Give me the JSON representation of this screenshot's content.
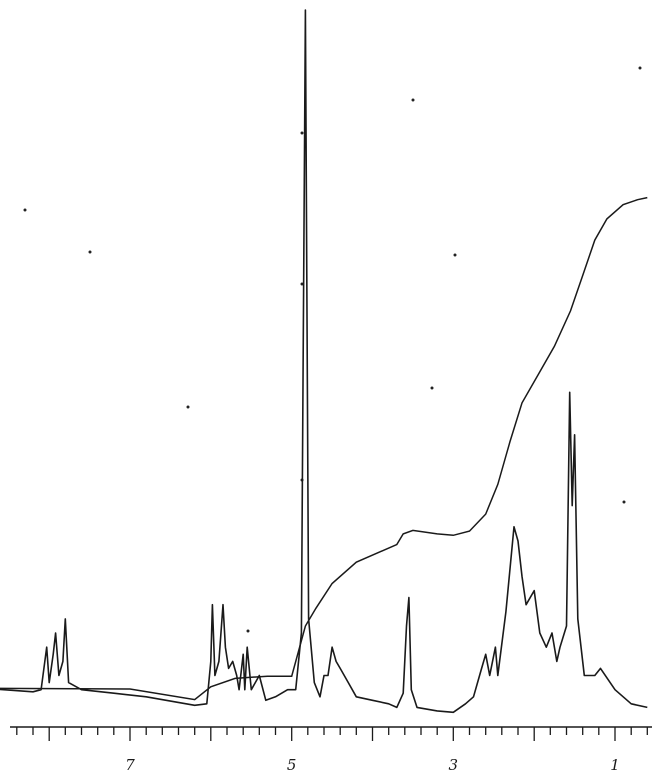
{
  "chart_data": {
    "type": "line",
    "title": "",
    "xlabel": "",
    "ylabel": "",
    "x_reversed": true,
    "xlim": [
      0.6,
      8.8
    ],
    "ylim": [
      0,
      100
    ],
    "grid": false,
    "legend": "none",
    "x_tick_labels": [
      {
        "value": 7,
        "label": "7"
      },
      {
        "value": 5,
        "label": "5"
      },
      {
        "value": 3,
        "label": "3"
      },
      {
        "value": 1,
        "label": "1"
      }
    ],
    "series": [
      {
        "type": "spectrum",
        "points": [
          [
            8.8,
            4.2
          ],
          [
            8.2,
            3.7
          ],
          [
            8.1,
            4
          ],
          [
            8.03,
            10
          ],
          [
            8.0,
            5
          ],
          [
            7.95,
            9
          ],
          [
            7.92,
            12
          ],
          [
            7.88,
            6
          ],
          [
            7.83,
            8
          ],
          [
            7.8,
            14
          ],
          [
            7.76,
            5
          ],
          [
            7.6,
            4
          ],
          [
            7.2,
            3.5
          ],
          [
            6.8,
            3.0
          ],
          [
            6.2,
            1.8
          ],
          [
            6.05,
            2.0
          ],
          [
            6.0,
            8
          ],
          [
            5.98,
            16
          ],
          [
            5.95,
            6
          ],
          [
            5.9,
            8
          ],
          [
            5.85,
            16
          ],
          [
            5.82,
            10
          ],
          [
            5.78,
            7
          ],
          [
            5.73,
            8
          ],
          [
            5.68,
            6
          ],
          [
            5.65,
            4
          ],
          [
            5.6,
            9
          ],
          [
            5.58,
            4
          ],
          [
            5.55,
            10
          ],
          [
            5.5,
            4
          ],
          [
            5.45,
            5
          ],
          [
            5.4,
            6
          ],
          [
            5.32,
            2.5
          ],
          [
            5.2,
            3
          ],
          [
            5.05,
            4
          ],
          [
            4.95,
            4
          ],
          [
            4.88,
            12
          ],
          [
            4.83,
            100
          ],
          [
            4.79,
            14
          ],
          [
            4.72,
            5
          ],
          [
            4.65,
            3
          ],
          [
            4.6,
            6
          ],
          [
            4.55,
            6
          ],
          [
            4.5,
            10
          ],
          [
            4.45,
            8
          ],
          [
            4.4,
            7
          ],
          [
            4.3,
            5
          ],
          [
            4.2,
            3
          ],
          [
            4.0,
            2.5
          ],
          [
            3.8,
            2.0
          ],
          [
            3.7,
            1.5
          ],
          [
            3.62,
            3.5
          ],
          [
            3.58,
            13
          ],
          [
            3.55,
            17
          ],
          [
            3.52,
            4
          ],
          [
            3.45,
            1.5
          ],
          [
            3.2,
            1.0
          ],
          [
            3.0,
            0.8
          ],
          [
            2.85,
            2
          ],
          [
            2.75,
            3
          ],
          [
            2.65,
            7
          ],
          [
            2.6,
            9
          ],
          [
            2.55,
            6
          ],
          [
            2.48,
            10
          ],
          [
            2.45,
            6
          ],
          [
            2.35,
            15
          ],
          [
            2.25,
            27
          ],
          [
            2.2,
            25
          ],
          [
            2.15,
            20
          ],
          [
            2.1,
            16
          ],
          [
            2.0,
            18
          ],
          [
            1.93,
            12
          ],
          [
            1.85,
            10
          ],
          [
            1.78,
            12
          ],
          [
            1.72,
            8
          ],
          [
            1.68,
            10
          ],
          [
            1.6,
            13
          ],
          [
            1.56,
            46
          ],
          [
            1.53,
            30
          ],
          [
            1.5,
            40
          ],
          [
            1.46,
            14
          ],
          [
            1.38,
            6
          ],
          [
            1.25,
            6
          ],
          [
            1.18,
            7
          ],
          [
            1.0,
            4
          ],
          [
            0.8,
            2
          ],
          [
            0.6,
            1.5
          ]
        ]
      },
      {
        "type": "integral",
        "points": [
          [
            8.8,
            4.2
          ],
          [
            7.0,
            4.1
          ],
          [
            6.2,
            2.6
          ],
          [
            6.0,
            4.4
          ],
          [
            5.7,
            5.6
          ],
          [
            5.3,
            5.9
          ],
          [
            5.0,
            5.9
          ],
          [
            4.83,
            13
          ],
          [
            4.7,
            15.5
          ],
          [
            4.5,
            19
          ],
          [
            4.2,
            22
          ],
          [
            3.9,
            23.5
          ],
          [
            3.7,
            24.5
          ],
          [
            3.62,
            26
          ],
          [
            3.5,
            26.5
          ],
          [
            3.2,
            26
          ],
          [
            3.0,
            25.8
          ],
          [
            2.8,
            26.4
          ],
          [
            2.6,
            28.8
          ],
          [
            2.45,
            33
          ],
          [
            2.3,
            39
          ],
          [
            2.15,
            44.5
          ],
          [
            1.95,
            48.5
          ],
          [
            1.75,
            52.5
          ],
          [
            1.55,
            57.5
          ],
          [
            1.4,
            62.5
          ],
          [
            1.25,
            67.5
          ],
          [
            1.1,
            70.5
          ],
          [
            0.9,
            72.5
          ],
          [
            0.72,
            73.2
          ],
          [
            0.6,
            73.5
          ]
        ]
      }
    ]
  }
}
